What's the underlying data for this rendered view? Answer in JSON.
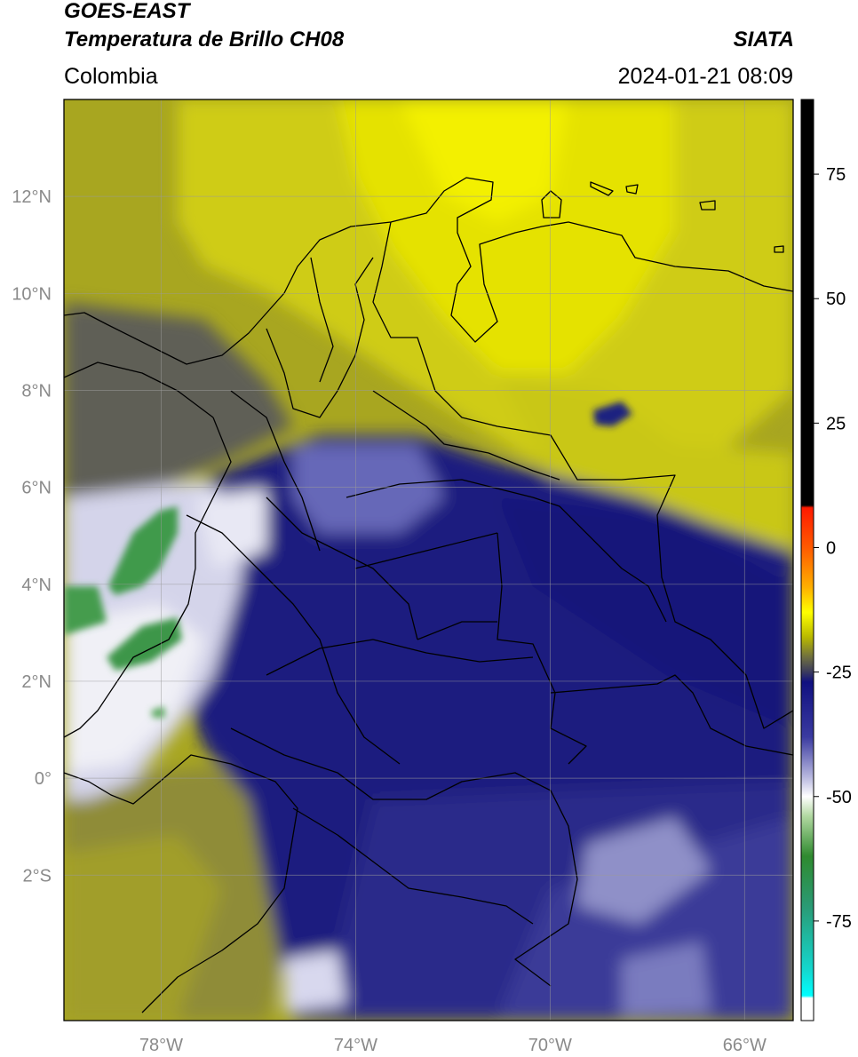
{
  "header": {
    "satellite": "GOES-EAST",
    "product": "Temperatura de Brillo CH08",
    "agency": "SIATA",
    "region": "Colombia",
    "datetime": "2024-01-21 08:09"
  },
  "map": {
    "lon_range": [
      -80,
      -65
    ],
    "lat_range": [
      -5,
      14
    ],
    "lat_ticks": [
      {
        "value": 12,
        "label": "12°N"
      },
      {
        "value": 10,
        "label": "10°N"
      },
      {
        "value": 8,
        "label": "8°N"
      },
      {
        "value": 6,
        "label": "6°N"
      },
      {
        "value": 4,
        "label": "4°N"
      },
      {
        "value": 2,
        "label": "2°N"
      },
      {
        "value": 0,
        "label": "0°"
      },
      {
        "value": -2,
        "label": "2°S"
      }
    ],
    "lon_ticks": [
      {
        "value": -78,
        "label": "78°W"
      },
      {
        "value": -74,
        "label": "74°W"
      },
      {
        "value": -70,
        "label": "70°W"
      },
      {
        "value": -66,
        "label": "66°W"
      }
    ],
    "grid": true
  },
  "colorbar": {
    "range": [
      -95,
      90
    ],
    "ticks": [
      {
        "value": 75,
        "label": "75"
      },
      {
        "value": 50,
        "label": "50"
      },
      {
        "value": 25,
        "label": "25"
      },
      {
        "value": 0,
        "label": "0"
      },
      {
        "value": -25,
        "label": "-25"
      },
      {
        "value": -50,
        "label": "-50"
      },
      {
        "value": -75,
        "label": "-75"
      }
    ],
    "stops": [
      {
        "value": 90,
        "color": "#000000"
      },
      {
        "value": 8.5,
        "color": "#000000"
      },
      {
        "value": 8,
        "color": "#ff1a00"
      },
      {
        "value": 0,
        "color": "#ff5a00"
      },
      {
        "value": -8,
        "color": "#ffb000"
      },
      {
        "value": -13,
        "color": "#ffff00"
      },
      {
        "value": -18,
        "color": "#b8b800"
      },
      {
        "value": -22,
        "color": "#6f6f40"
      },
      {
        "value": -25,
        "color": "#3a3a5e"
      },
      {
        "value": -27,
        "color": "#101080"
      },
      {
        "value": -38,
        "color": "#3a3aa0"
      },
      {
        "value": -46,
        "color": "#b6b6de"
      },
      {
        "value": -50,
        "color": "#ffffff"
      },
      {
        "value": -54,
        "color": "#b0d8a0"
      },
      {
        "value": -62,
        "color": "#2f8a2f"
      },
      {
        "value": -72,
        "color": "#2a9a74"
      },
      {
        "value": -85,
        "color": "#14d8d0"
      },
      {
        "value": -90,
        "color": "#00ffff"
      },
      {
        "value": -90.5,
        "color": "#ffffff"
      },
      {
        "value": -95,
        "color": "#ffffff"
      }
    ]
  },
  "colors": {
    "ocean_warm": "#9b9a1e",
    "warm_dry": "#e3e003",
    "mid_cloud": "#5e5e58",
    "cold_cloud": "#1c1d7e",
    "very_cold": "#e8e8f2",
    "coldest": "#3c9a4a"
  }
}
